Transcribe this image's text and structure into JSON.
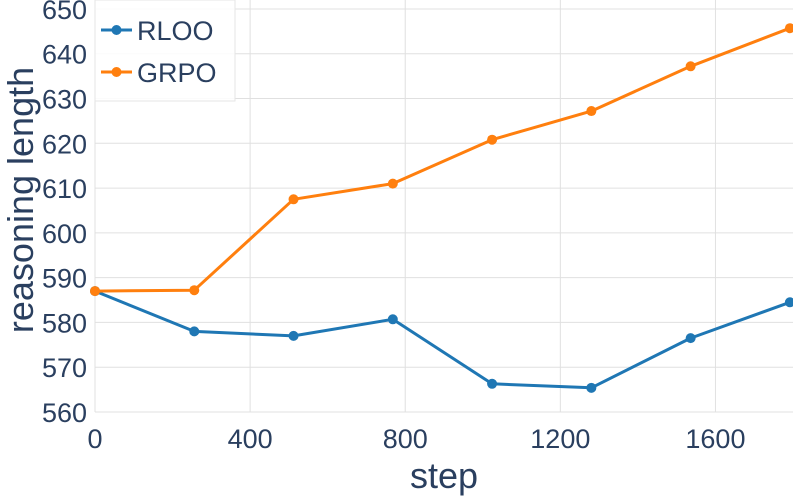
{
  "chart_data": {
    "type": "line",
    "title": "",
    "xlabel": "step",
    "ylabel": "reasoning length",
    "xlim": [
      0,
      1800
    ],
    "ylim": [
      560,
      652
    ],
    "xticks": [
      0,
      400,
      800,
      1200,
      1600
    ],
    "xtick_labels": [
      "0",
      "400",
      "800",
      "1200",
      "1600"
    ],
    "yticks": [
      560,
      570,
      580,
      590,
      600,
      610,
      620,
      630,
      640,
      650
    ],
    "ytick_labels": [
      "560",
      "570",
      "580",
      "590",
      "600",
      "610",
      "620",
      "630",
      "640",
      "650"
    ],
    "grid": true,
    "legend_position": "top-left",
    "series": [
      {
        "name": "RLOO",
        "color": "#1f77b4",
        "x": [
          0,
          256,
          512,
          768,
          1024,
          1280,
          1536,
          1792
        ],
        "y": [
          587,
          578,
          577,
          580.7,
          566.3,
          565.4,
          576.5,
          584.5
        ]
      },
      {
        "name": "GRPO",
        "color": "#ff7f0e",
        "x": [
          0,
          256,
          512,
          768,
          1024,
          1280,
          1536,
          1792
        ],
        "y": [
          587,
          587.2,
          607.5,
          611,
          620.8,
          627.2,
          637.2,
          645.7
        ]
      }
    ]
  }
}
